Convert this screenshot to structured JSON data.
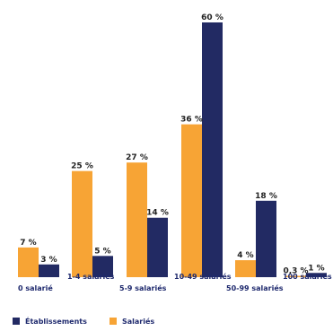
{
  "chart_data": {
    "type": "bar",
    "categories": [
      "0 salarié",
      "1-4 salariés",
      "5-9 salariés",
      "10-49 salariés",
      "50-99 salariés",
      "100 salariés"
    ],
    "series": [
      {
        "name": "Salariés",
        "color": "#f7a435",
        "values": [
          7,
          25,
          27,
          36,
          4,
          0.3
        ],
        "labels": [
          "7 %",
          "25 %",
          "27 %",
          "36 %",
          "4 %",
          "0,3 %"
        ]
      },
      {
        "name": "Établissements",
        "color": "#222a63",
        "values": [
          3,
          5,
          14,
          60,
          18,
          1
        ],
        "labels": [
          "3 %",
          "5 %",
          "14 %",
          "60 %",
          "18 %",
          "1 %"
        ]
      }
    ],
    "ylim": [
      0,
      60
    ],
    "grid": false,
    "legend": "bottom-left"
  }
}
